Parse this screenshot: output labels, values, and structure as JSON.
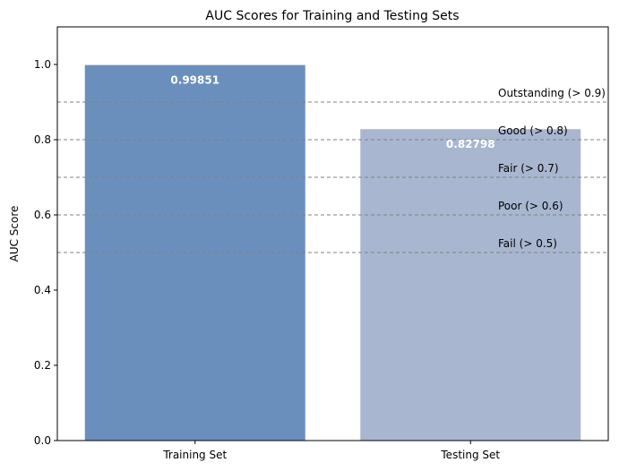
{
  "chart_data": {
    "type": "bar",
    "title": "AUC Scores for Training and Testing Sets",
    "xlabel": "",
    "ylabel": "AUC Score",
    "ylim": [
      0,
      1.1
    ],
    "yticks": [
      0.0,
      0.2,
      0.4,
      0.6,
      0.8,
      1.0
    ],
    "ytick_labels": [
      "0.0",
      "0.2",
      "0.4",
      "0.6",
      "0.8",
      "1.0"
    ],
    "categories": [
      "Training Set",
      "Testing Set"
    ],
    "values": [
      0.99851,
      0.82798
    ],
    "value_labels": [
      "0.99851",
      "0.82798"
    ],
    "bar_colors": [
      "#6b8fbd",
      "#a8b7cf"
    ],
    "grid": false,
    "reference_lines": [
      {
        "y": 0.9,
        "label": "Outstanding (> 0.9)"
      },
      {
        "y": 0.8,
        "label": "Good (> 0.8)"
      },
      {
        "y": 0.7,
        "label": "Fair (> 0.7)"
      },
      {
        "y": 0.6,
        "label": "Poor (> 0.6)"
      },
      {
        "y": 0.5,
        "label": "Fail (> 0.5)"
      }
    ],
    "reference_line_color": "#808080"
  }
}
